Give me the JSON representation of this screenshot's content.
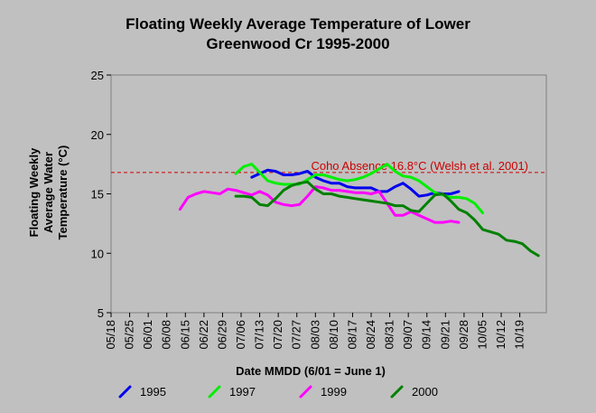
{
  "chart_data": {
    "type": "line",
    "title_lines": [
      "Floating Weekly Average Temperature of Lower",
      "Greenwood Cr 1995-2000"
    ],
    "xlabel": "Date MMDD (6/01 = June 1)",
    "ylabel_lines": [
      "Floating Weekly",
      "Average Water",
      "Temperature (°C)"
    ],
    "ylim": [
      5,
      25
    ],
    "yticks": [
      5,
      10,
      15,
      20,
      25
    ],
    "x_range_days": [
      -14,
      150
    ],
    "xtick_labels": [
      "05/18",
      "05/25",
      "06/01",
      "06/08",
      "06/15",
      "06/22",
      "06/29",
      "07/06",
      "07/13",
      "07/20",
      "07/27",
      "08/03",
      "08/10",
      "08/17",
      "08/24",
      "08/31",
      "09/07",
      "09/14",
      "09/21",
      "09/28",
      "10/05",
      "10/12",
      "10/19"
    ],
    "reference_line": {
      "y": 16.8,
      "label": "Coho Absence 16.8°C (Welsh et al. 2001)",
      "color": "#cc0000"
    },
    "series": [
      {
        "name": "1995",
        "color": "#0000ee",
        "dates": [
          "07/10",
          "07/13",
          "07/16",
          "07/19",
          "07/22",
          "07/25",
          "07/28",
          "07/31",
          "08/03",
          "08/06",
          "08/09",
          "08/12",
          "08/15",
          "08/18",
          "08/21",
          "08/24",
          "08/27",
          "08/30",
          "09/02",
          "09/05",
          "09/08",
          "09/11",
          "09/14",
          "09/17",
          "09/20",
          "09/23",
          "09/26"
        ],
        "values": [
          16.4,
          16.7,
          17.0,
          16.9,
          16.6,
          16.6,
          16.7,
          16.9,
          16.4,
          16.1,
          15.9,
          15.9,
          15.6,
          15.5,
          15.5,
          15.5,
          15.2,
          15.2,
          15.6,
          15.9,
          15.4,
          14.8,
          14.9,
          15.1,
          15.0,
          15.0,
          15.2
        ]
      },
      {
        "name": "1997",
        "color": "#00ee00",
        "dates": [
          "07/04",
          "07/07",
          "07/10",
          "07/13",
          "07/16",
          "07/19",
          "07/22",
          "07/25",
          "07/28",
          "07/31",
          "08/03",
          "08/06",
          "08/09",
          "08/12",
          "08/15",
          "08/18",
          "08/21",
          "08/24",
          "08/27",
          "08/30",
          "09/02",
          "09/05",
          "09/08",
          "09/11",
          "09/14",
          "09/17",
          "09/20",
          "09/23",
          "09/26",
          "09/29",
          "10/02",
          "10/05"
        ],
        "values": [
          16.7,
          17.3,
          17.5,
          16.8,
          16.1,
          15.9,
          15.8,
          15.8,
          15.8,
          16.2,
          16.6,
          16.6,
          16.4,
          16.2,
          16.1,
          16.2,
          16.4,
          16.7,
          17.1,
          17.5,
          16.9,
          16.5,
          16.4,
          16.1,
          15.6,
          15.1,
          14.9,
          14.7,
          14.7,
          14.6,
          14.2,
          13.4
        ]
      },
      {
        "name": "1999",
        "color": "#ff00ff",
        "dates": [
          "06/13",
          "06/16",
          "06/19",
          "06/22",
          "06/25",
          "06/28",
          "07/01",
          "07/04",
          "07/07",
          "07/10",
          "07/13",
          "07/16",
          "07/19",
          "07/22",
          "07/25",
          "07/28",
          "07/31",
          "08/03",
          "08/06",
          "08/09",
          "08/12",
          "08/15",
          "08/18",
          "08/21",
          "08/24",
          "08/27",
          "08/30",
          "09/02",
          "09/05",
          "09/08",
          "09/11",
          "09/14",
          "09/17",
          "09/20",
          "09/23",
          "09/26"
        ],
        "values": [
          13.7,
          14.7,
          15.0,
          15.2,
          15.1,
          15.0,
          15.4,
          15.3,
          15.1,
          14.9,
          15.2,
          14.9,
          14.3,
          14.1,
          14.0,
          14.1,
          14.8,
          15.6,
          15.5,
          15.3,
          15.3,
          15.2,
          15.1,
          15.1,
          15.0,
          15.2,
          14.2,
          13.2,
          13.2,
          13.5,
          13.2,
          12.9,
          12.6,
          12.6,
          12.7,
          12.6
        ]
      },
      {
        "name": "2000",
        "color": "#008000",
        "dates": [
          "07/04",
          "07/07",
          "07/10",
          "07/13",
          "07/16",
          "07/19",
          "07/22",
          "07/25",
          "07/28",
          "07/31",
          "08/03",
          "08/06",
          "08/09",
          "08/12",
          "08/15",
          "08/18",
          "08/21",
          "08/24",
          "08/27",
          "08/30",
          "09/02",
          "09/05",
          "09/08",
          "09/11",
          "09/14",
          "09/17",
          "09/20",
          "09/23",
          "09/26",
          "09/29",
          "10/02",
          "10/05",
          "10/08",
          "10/11",
          "10/14",
          "10/17",
          "10/20",
          "10/23",
          "10/26"
        ],
        "values": [
          14.8,
          14.8,
          14.7,
          14.1,
          14.0,
          14.6,
          15.3,
          15.7,
          15.9,
          16.0,
          15.4,
          15.0,
          15.0,
          14.8,
          14.7,
          14.6,
          14.5,
          14.4,
          14.3,
          14.2,
          14.0,
          14.0,
          13.6,
          13.5,
          14.2,
          14.9,
          15.0,
          14.4,
          13.7,
          13.4,
          12.8,
          12.0,
          11.8,
          11.6,
          11.1,
          11.0,
          10.8,
          10.2,
          9.8
        ]
      }
    ]
  }
}
